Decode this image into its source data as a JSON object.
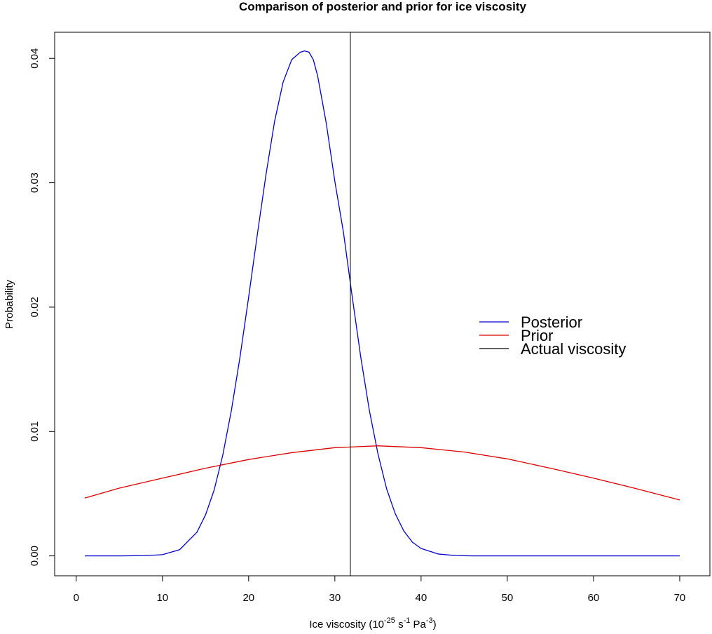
{
  "chart_data": {
    "type": "line",
    "title": "Comparison of posterior and prior for ice viscosity",
    "xlabel": {
      "prefix": "Ice viscosity (10",
      "exp1": "-25",
      "mid1": " s",
      "exp2": "-1",
      "mid2": " Pa",
      "exp3": "-3",
      "suffix": ")"
    },
    "ylabel": "Probability",
    "xlim": [
      -2.5,
      73.5
    ],
    "ylim": [
      -0.0016,
      0.0421
    ],
    "x_ticks": [
      0,
      10,
      20,
      30,
      40,
      50,
      60,
      70
    ],
    "y_ticks": [
      0.0,
      0.01,
      0.02,
      0.03,
      0.04
    ],
    "y_tick_labels": [
      "0.00",
      "0.01",
      "0.02",
      "0.03",
      "0.04"
    ],
    "grid": false,
    "legend_position": "right",
    "series": [
      {
        "name": "Posterior",
        "color": "#0000cc",
        "x": [
          1,
          5,
          8,
          10,
          12,
          14,
          15,
          16,
          17,
          18,
          19,
          20,
          21,
          22,
          23,
          24,
          25,
          26,
          26.5,
          27,
          27.5,
          28,
          29,
          30,
          31,
          32,
          33,
          34,
          35,
          36,
          37,
          38,
          39,
          40,
          42,
          44,
          46,
          50,
          60,
          70
        ],
        "y": [
          0.0,
          0.0,
          2e-05,
          0.0001,
          0.0005,
          0.0019,
          0.0033,
          0.0053,
          0.0081,
          0.0117,
          0.016,
          0.0208,
          0.0258,
          0.0306,
          0.0349,
          0.0381,
          0.0399,
          0.0405,
          0.0406,
          0.0405,
          0.0399,
          0.0386,
          0.0348,
          0.0301,
          0.026,
          0.0209,
          0.016,
          0.0117,
          0.0082,
          0.0054,
          0.0034,
          0.002,
          0.0011,
          0.0006,
          0.00015,
          3e-05,
          0.0,
          0.0,
          0.0,
          0.0
        ]
      },
      {
        "name": "Prior",
        "color": "#dd0000",
        "x": [
          1,
          5,
          10,
          15,
          20,
          25,
          30,
          35,
          40,
          45,
          50,
          55,
          60,
          65,
          70
        ],
        "y": [
          0.00465,
          0.00545,
          0.00625,
          0.00705,
          0.00775,
          0.0083,
          0.0087,
          0.00885,
          0.0087,
          0.00835,
          0.0078,
          0.00705,
          0.00625,
          0.0054,
          0.0045
        ]
      },
      {
        "name": "Actual viscosity",
        "color": "#000000",
        "type": "vline",
        "x_value": 31.8
      }
    ]
  }
}
